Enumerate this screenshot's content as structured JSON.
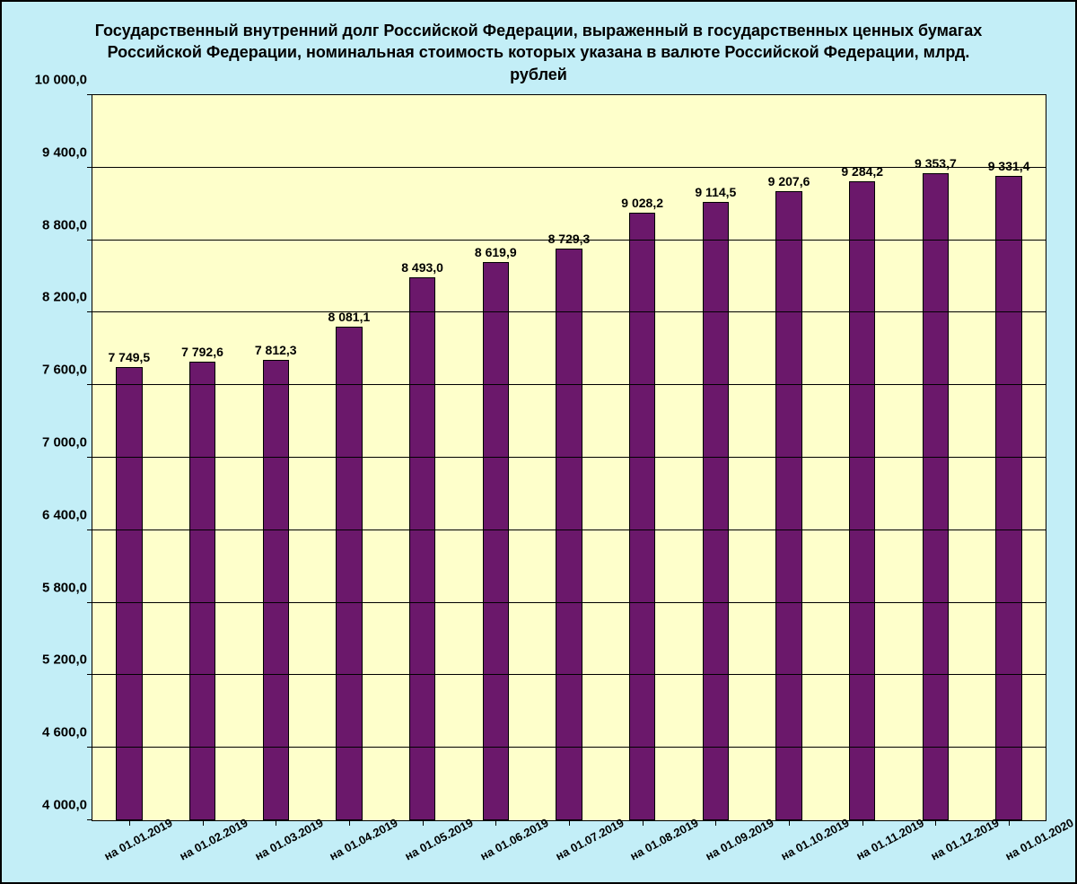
{
  "chart": {
    "type": "bar",
    "title": "Государственный внутренний долг Российской Федерации, выраженный в государственных ценных бумагах Российской Федерации, номинальная стоимость которых указана в валюте Российской Федерации, млрд. рублей",
    "title_fontsize": 18,
    "title_color": "#000000",
    "background_color": "#c3eef7",
    "plot_background_color": "#feffcb",
    "grid_color": "#000000",
    "axis_color": "#000000",
    "bar_fill_color": "#6b186b",
    "bar_border_color": "#000000",
    "bar_width_ratio": 0.36,
    "data_label_fontsize": 14,
    "y_tick_fontsize": 15,
    "x_tick_fontsize": 13,
    "ylim": [
      4000,
      10000
    ],
    "y_ticks": [
      4000,
      4600,
      5200,
      5800,
      6400,
      7000,
      7600,
      8200,
      8800,
      9400,
      10000
    ],
    "y_tick_labels": [
      "4 000,0",
      "4 600,0",
      "5 200,0",
      "5 800,0",
      "6 400,0",
      "7 000,0",
      "7 600,0",
      "8 200,0",
      "8 800,0",
      "9 400,0",
      "10 000,0"
    ],
    "categories": [
      "на 01.01.2019",
      "на 01.02.2019",
      "на 01.03.2019",
      "на 01.04.2019",
      "на 01.05.2019",
      "на 01.06.2019",
      "на 01.07.2019",
      "на 01.08.2019",
      "на 01.09.2019",
      "на 01.10.2019",
      "на 01.11.2019",
      "на 01.12.2019",
      "на 01.01.2020"
    ],
    "values": [
      7749.5,
      7792.6,
      7812.3,
      8081.1,
      8493.0,
      8619.9,
      8729.3,
      9028.2,
      9114.5,
      9207.6,
      9284.2,
      9353.7,
      9331.4
    ],
    "value_labels": [
      "7 749,5",
      "7 792,6",
      "7 812,3",
      "8 081,1",
      "8 493,0",
      "8 619,9",
      "8 729,3",
      "9 028,2",
      "9 114,5",
      "9 207,6",
      "9 284,2",
      "9 353,7",
      "9 331,4"
    ]
  }
}
